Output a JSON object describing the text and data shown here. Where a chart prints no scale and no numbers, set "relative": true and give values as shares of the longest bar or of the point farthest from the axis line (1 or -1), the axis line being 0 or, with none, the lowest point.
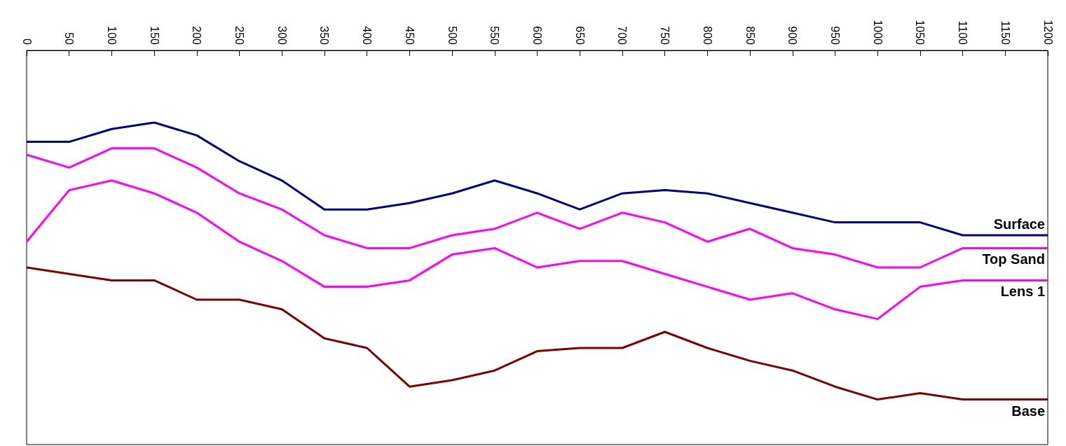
{
  "chart_data": {
    "type": "line",
    "relative": true,
    "x": [
      0,
      50,
      100,
      150,
      200,
      250,
      300,
      350,
      400,
      450,
      500,
      550,
      600,
      650,
      700,
      750,
      800,
      850,
      900,
      950,
      1000,
      1050,
      1100,
      1150,
      1200
    ],
    "xlim": [
      0,
      1200
    ],
    "xticks": [
      0,
      50,
      100,
      150,
      200,
      250,
      300,
      350,
      400,
      450,
      500,
      550,
      600,
      650,
      700,
      750,
      800,
      850,
      900,
      950,
      1000,
      1050,
      1100,
      1150,
      1200
    ],
    "grid": false,
    "legend": false,
    "marker": "none",
    "line_style": "solid",
    "series": [
      {
        "name": "Surface",
        "color": "#000080",
        "values": [
          0.94,
          0.94,
          0.98,
          1,
          0.96,
          0.88,
          0.82,
          0.73,
          0.73,
          0.75,
          0.78,
          0.82,
          0.78,
          0.73,
          0.78,
          0.79,
          0.78,
          0.75,
          0.72,
          0.69,
          0.69,
          0.69,
          0.65,
          0.65,
          0.65
        ]
      },
      {
        "name": "Top Sand",
        "color": "#ff00ff",
        "values": [
          0.9,
          0.86,
          0.92,
          0.92,
          0.86,
          0.78,
          0.73,
          0.65,
          0.61,
          0.61,
          0.65,
          0.67,
          0.72,
          0.67,
          0.72,
          0.69,
          0.63,
          0.67,
          0.61,
          0.59,
          0.55,
          0.55,
          0.61,
          0.61,
          0.61
        ]
      },
      {
        "name": "Lens 1",
        "color": "#ff00ff",
        "values": [
          0.63,
          0.79,
          0.82,
          0.78,
          0.72,
          0.63,
          0.57,
          0.49,
          0.49,
          0.51,
          0.59,
          0.61,
          0.55,
          0.57,
          0.57,
          0.53,
          0.49,
          0.45,
          0.47,
          0.42,
          0.39,
          0.49,
          0.51,
          0.51,
          0.51
        ]
      },
      {
        "name": "Base",
        "color": "#800000",
        "values": [
          0.55,
          0.53,
          0.51,
          0.51,
          0.45,
          0.45,
          0.42,
          0.33,
          0.3,
          0.18,
          0.2,
          0.23,
          0.29,
          0.3,
          0.3,
          0.35,
          0.3,
          0.26,
          0.23,
          0.18,
          0.14,
          0.16,
          0.14,
          0.14,
          0.14
        ]
      }
    ]
  }
}
